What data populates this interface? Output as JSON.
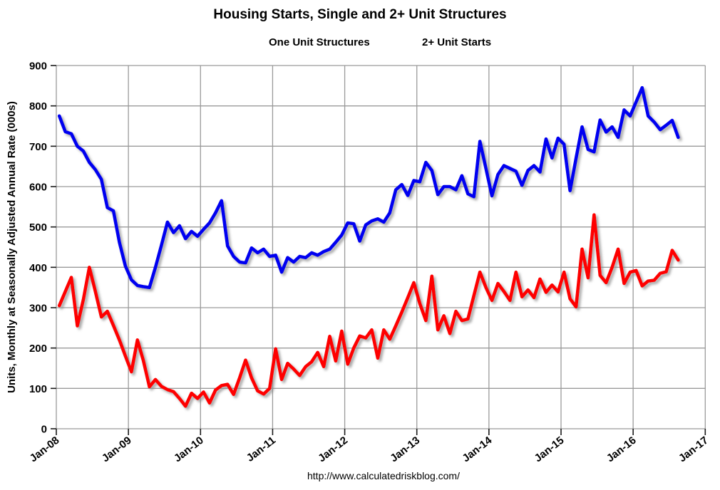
{
  "header": {
    "title": "Housing Starts, Single and 2+ Unit Structures"
  },
  "legend": {
    "items": [
      {
        "label": "One Unit Structures",
        "color": "#0000f0"
      },
      {
        "label": "2+ Unit Starts",
        "color": "#fe0000"
      }
    ]
  },
  "footer": {
    "url": "http://www.calculatedriskblog.com/"
  },
  "colors": {
    "grid": "#9a9a9a",
    "tick": "#1a1a1a",
    "background": "#ffffff",
    "one_unit_line": "#0000f0",
    "two_plus_line": "#fe0000"
  },
  "chart_data": {
    "type": "line",
    "title": "Housing Starts, Single and 2+ Unit Structures",
    "xlabel": "",
    "ylabel": "Units, Monthly at Seasonally Adjusted Annual Rate (000s)",
    "ylim": [
      0,
      900
    ],
    "y_ticks": [
      0,
      100,
      200,
      300,
      400,
      500,
      600,
      700,
      800,
      900
    ],
    "x_tick_labels": [
      "Jan-08",
      "Jan-09",
      "Jan-10",
      "Jan-11",
      "Jan-12",
      "Jan-13",
      "Jan-14",
      "Jan-15",
      "Jan-16",
      "Jan-17"
    ],
    "x_axis_total_months": 108,
    "data_start_month": "Jan-08",
    "data_end_month": "Aug-16",
    "grid": true,
    "legend_position": "top",
    "series": [
      {
        "name": "One Unit Structures",
        "color": "#0000f0",
        "values": [
          775,
          736,
          731,
          700,
          688,
          660,
          642,
          618,
          548,
          540,
          462,
          403,
          369,
          355,
          352,
          350,
          400,
          455,
          512,
          486,
          503,
          471,
          489,
          477,
          494,
          510,
          535,
          565,
          453,
          427,
          413,
          411,
          448,
          436,
          445,
          427,
          430,
          388,
          424,
          413,
          427,
          424,
          436,
          430,
          439,
          445,
          462,
          480,
          510,
          508,
          465,
          505,
          515,
          520,
          512,
          535,
          592,
          605,
          578,
          615,
          612,
          660,
          640,
          580,
          600,
          600,
          592,
          627,
          582,
          575,
          712,
          645,
          577,
          630,
          652,
          645,
          638,
          603,
          640,
          652,
          636,
          718,
          671,
          720,
          705,
          590,
          670,
          748,
          692,
          686,
          765,
          735,
          748,
          722,
          790,
          775,
          810,
          845,
          775,
          760,
          741,
          752,
          764,
          722
        ]
      },
      {
        "name": "2+ Unit Starts",
        "color": "#fe0000",
        "values": [
          305,
          340,
          375,
          255,
          320,
          400,
          340,
          277,
          291,
          256,
          220,
          180,
          141,
          220,
          168,
          104,
          122,
          105,
          97,
          92,
          75,
          56,
          88,
          75,
          91,
          64,
          96,
          107,
          110,
          85,
          126,
          170,
          126,
          94,
          86,
          100,
          198,
          122,
          162,
          148,
          132,
          154,
          166,
          189,
          154,
          229,
          168,
          242,
          160,
          200,
          230,
          225,
          245,
          175,
          245,
          222,
          255,
          289,
          325,
          362,
          310,
          268,
          378,
          245,
          280,
          236,
          291,
          268,
          272,
          330,
          388,
          350,
          318,
          360,
          340,
          318,
          388,
          327,
          344,
          325,
          371,
          338,
          356,
          339,
          388,
          322,
          302,
          445,
          374,
          530,
          380,
          362,
          400,
          445,
          360,
          388,
          392,
          354,
          366,
          368,
          385,
          389,
          442,
          418
        ]
      }
    ]
  }
}
